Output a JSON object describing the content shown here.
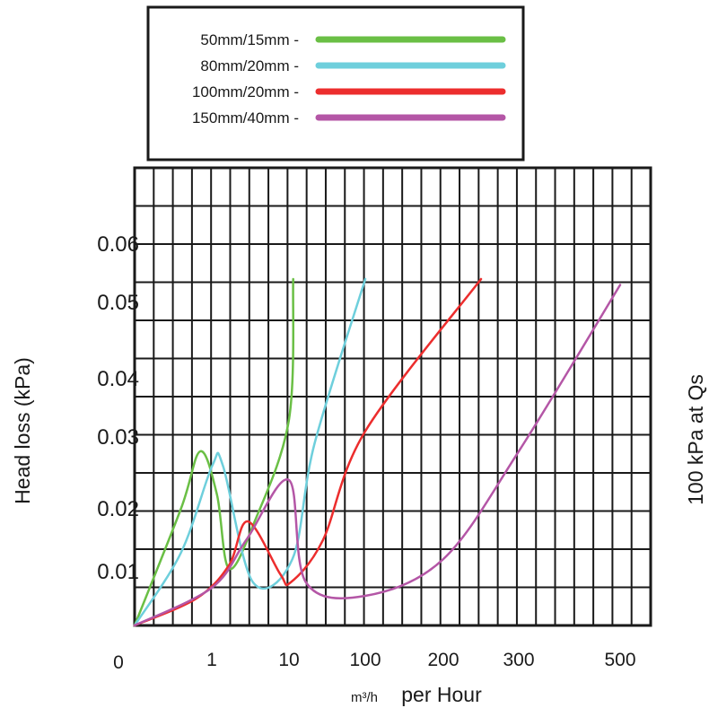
{
  "chart_data": {
    "type": "line",
    "xlabel": "per Hour",
    "xlabel_unit": "m³/h",
    "ylabel": "Head loss (kPa)",
    "right_label": "100 kPa at Qs",
    "x_ticks": [
      "0",
      "1",
      "10",
      "100",
      "200",
      "300",
      "500"
    ],
    "y_ticks": [
      "0.06",
      "0.05",
      "0.04",
      "0.03",
      "0.02",
      "0.01"
    ],
    "grid": true,
    "legend_position": "top",
    "series": [
      {
        "name": "50mm/15mm -",
        "color": "#6abf45",
        "points": [
          [
            0,
            0
          ],
          [
            0.6,
            0.02
          ],
          [
            0.85,
            0.028
          ],
          [
            1.6,
            0.022
          ],
          [
            3,
            0.0105
          ],
          [
            6,
            0.018
          ],
          [
            10,
            0.033
          ],
          [
            15,
            0.054
          ]
        ]
      },
      {
        "name": "80mm/20mm -",
        "color": "#6ecfdc",
        "points": [
          [
            0,
            0
          ],
          [
            0.6,
            0.013
          ],
          [
            1.05,
            0.026
          ],
          [
            2.3,
            0.026
          ],
          [
            5.8,
            0.008
          ],
          [
            14,
            0.012
          ],
          [
            40,
            0.029
          ],
          [
            100,
            0.054
          ]
        ]
      },
      {
        "name": "100mm/20mm -",
        "color": "#ec2d2d",
        "points": [
          [
            0,
            0
          ],
          [
            0.8,
            0.005
          ],
          [
            3,
            0.011
          ],
          [
            5.2,
            0.018
          ],
          [
            9,
            0.0095
          ],
          [
            12,
            0.008
          ],
          [
            50,
            0.015
          ],
          [
            100,
            0.031
          ],
          [
            250,
            0.054
          ]
        ]
      },
      {
        "name": "150mm/40mm -",
        "color": "#b456a6",
        "points": [
          [
            0,
            0
          ],
          [
            1,
            0.007
          ],
          [
            5,
            0.015
          ],
          [
            10,
            0.024
          ],
          [
            30,
            0.008
          ],
          [
            100,
            0.0055
          ],
          [
            200,
            0.012
          ],
          [
            300,
            0.028
          ],
          [
            500,
            0.053
          ]
        ]
      }
    ]
  }
}
